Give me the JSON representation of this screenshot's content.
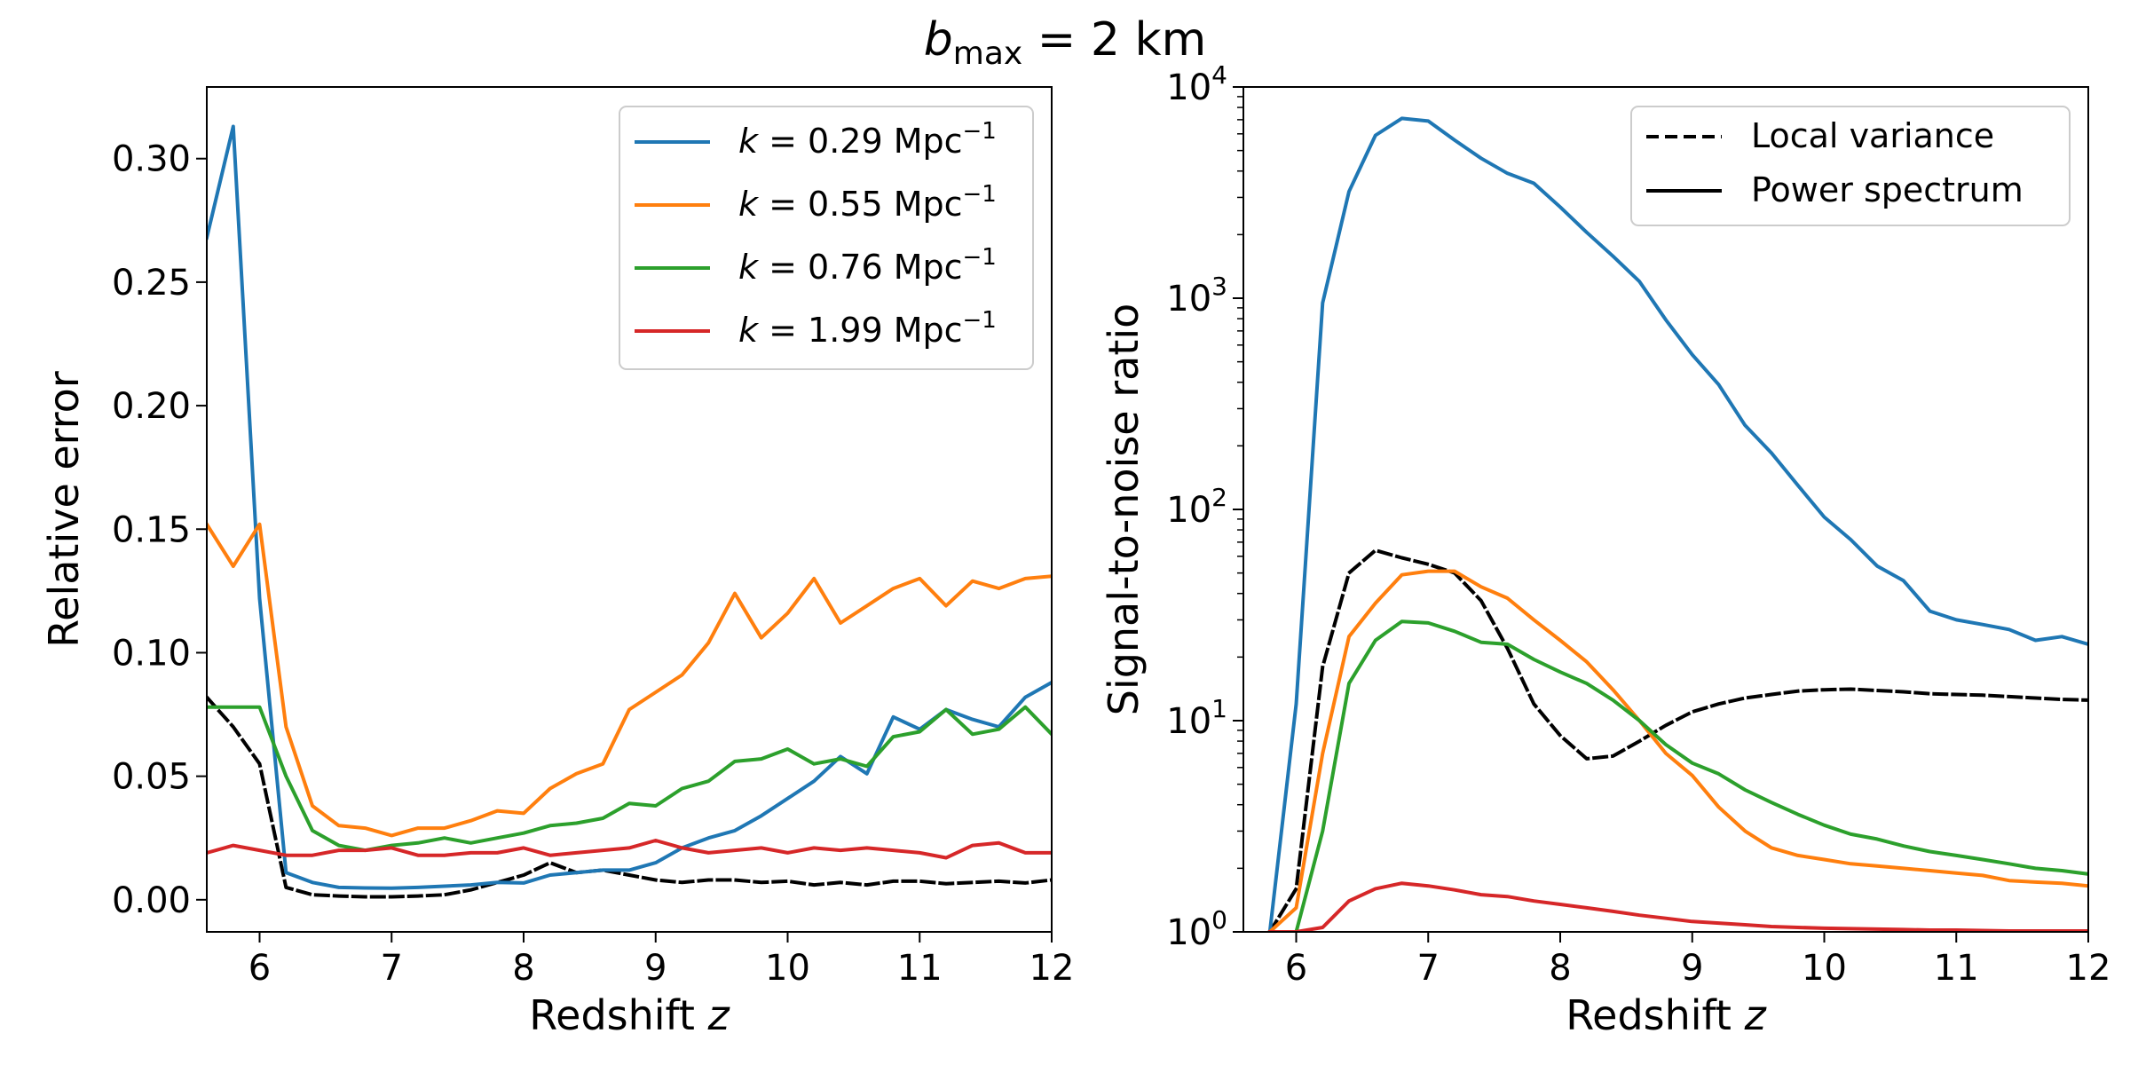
{
  "figure": {
    "title_var": "b",
    "title_sub": "max",
    "title_rest": " = 2 km"
  },
  "chart_data": [
    {
      "type": "line",
      "panel": "left",
      "xlabel": "Redshift",
      "xlabel_var": "z",
      "ylabel": "Relative error",
      "xlim": [
        5.6,
        12
      ],
      "ylim": [
        -0.013,
        0.329
      ],
      "yscale": "linear",
      "xticks": [
        6,
        7,
        8,
        9,
        10,
        11,
        12
      ],
      "yticks": [
        0.0,
        0.05,
        0.1,
        0.15,
        0.2,
        0.25,
        0.3
      ],
      "ytick_labels": [
        "0.00",
        "0.05",
        "0.10",
        "0.15",
        "0.20",
        "0.25",
        "0.30"
      ],
      "legend_location": "upper right",
      "x": [
        5.6,
        5.8,
        6.0,
        6.2,
        6.4,
        6.6,
        6.8,
        7.0,
        7.2,
        7.4,
        7.6,
        7.8,
        8.0,
        8.2,
        8.4,
        8.6,
        8.8,
        9.0,
        9.2,
        9.4,
        9.6,
        9.8,
        10.0,
        10.2,
        10.4,
        10.6,
        10.8,
        11.0,
        11.2,
        11.4,
        11.6,
        11.8,
        12.0
      ],
      "series": [
        {
          "name": "k = 0.29 Mpc⁻¹",
          "k": "0.29",
          "color": "#1f77b4",
          "dash": "solid",
          "values": [
            0.268,
            0.313,
            0.122,
            0.011,
            0.007,
            0.005,
            0.0048,
            0.0047,
            0.005,
            0.0055,
            0.006,
            0.007,
            0.0068,
            0.01,
            0.011,
            0.012,
            0.012,
            0.015,
            0.021,
            0.025,
            0.028,
            0.034,
            0.041,
            0.048,
            0.058,
            0.051,
            0.074,
            0.069,
            0.077,
            0.073,
            0.07,
            0.082,
            0.088
          ]
        },
        {
          "name": "k = 0.55 Mpc⁻¹",
          "k": "0.55",
          "color": "#ff7f0e",
          "dash": "solid",
          "values": [
            0.152,
            0.135,
            0.152,
            0.07,
            0.038,
            0.03,
            0.029,
            0.026,
            0.029,
            0.029,
            0.032,
            0.036,
            0.035,
            0.045,
            0.051,
            0.055,
            0.077,
            0.084,
            0.091,
            0.104,
            0.124,
            0.106,
            0.116,
            0.13,
            0.112,
            0.119,
            0.126,
            0.13,
            0.119,
            0.129,
            0.126,
            0.13,
            0.131
          ]
        },
        {
          "name": "k = 0.76 Mpc⁻¹",
          "k": "0.76",
          "color": "#2ca02c",
          "dash": "solid",
          "values": [
            0.078,
            0.078,
            0.078,
            0.05,
            0.028,
            0.022,
            0.02,
            0.022,
            0.023,
            0.025,
            0.023,
            0.025,
            0.027,
            0.03,
            0.031,
            0.033,
            0.039,
            0.038,
            0.045,
            0.048,
            0.056,
            0.057,
            0.061,
            0.055,
            0.057,
            0.054,
            0.066,
            0.068,
            0.077,
            0.067,
            0.069,
            0.078,
            0.067
          ]
        },
        {
          "name": "k = 1.99 Mpc⁻¹",
          "k": "1.99",
          "color": "#d62728",
          "dash": "solid",
          "values": [
            0.019,
            0.022,
            0.02,
            0.018,
            0.018,
            0.02,
            0.02,
            0.021,
            0.018,
            0.018,
            0.019,
            0.019,
            0.021,
            0.018,
            0.019,
            0.02,
            0.021,
            0.024,
            0.021,
            0.019,
            0.02,
            0.021,
            0.019,
            0.021,
            0.02,
            0.021,
            0.02,
            0.019,
            0.017,
            0.022,
            0.023,
            0.019,
            0.019
          ]
        },
        {
          "name": "Local variance",
          "color": "#000000",
          "dash": "dashed",
          "in_legend": false,
          "values": [
            0.082,
            0.07,
            0.055,
            0.005,
            0.002,
            0.0015,
            0.0012,
            0.0012,
            0.0015,
            0.002,
            0.004,
            0.007,
            0.01,
            0.015,
            0.011,
            0.012,
            0.01,
            0.008,
            0.007,
            0.008,
            0.008,
            0.007,
            0.0075,
            0.006,
            0.007,
            0.006,
            0.0075,
            0.0075,
            0.0065,
            0.007,
            0.0075,
            0.0068,
            0.008
          ]
        }
      ]
    },
    {
      "type": "line",
      "panel": "right",
      "xlabel": "Redshift",
      "xlabel_var": "z",
      "ylabel": "Signal-to-noise ratio",
      "xlim": [
        5.6,
        12
      ],
      "ylim": [
        1,
        10000
      ],
      "yscale": "log",
      "xticks": [
        6,
        7,
        8,
        9,
        10,
        11,
        12
      ],
      "yticks": [
        1,
        10,
        100,
        1000,
        10000
      ],
      "ytick_exponents": [
        "0",
        "1",
        "2",
        "3",
        "4"
      ],
      "legend_location": "upper right",
      "legend": [
        {
          "label": "Local variance",
          "dash": "dashed"
        },
        {
          "label": "Power spectrum",
          "dash": "solid"
        }
      ],
      "series": [
        {
          "name": "k = 0.29 Mpc⁻¹",
          "color": "#1f77b4",
          "dash": "solid",
          "x": [
            5.8,
            6.0,
            6.2,
            6.4,
            6.6,
            6.8,
            7.0,
            7.2,
            7.4,
            7.6,
            7.8,
            8.0,
            8.2,
            8.4,
            8.6,
            8.8,
            9.0,
            9.2,
            9.4,
            9.6,
            9.8,
            10.0,
            10.2,
            10.4,
            10.6,
            10.8,
            11.0,
            11.2,
            11.4,
            11.6,
            11.8,
            12.0
          ],
          "values": [
            1,
            12,
            950,
            3200,
            5900,
            7100,
            6900,
            5600,
            4600,
            3900,
            3500,
            2700,
            2050,
            1580,
            1200,
            790,
            540,
            390,
            250,
            185,
            130,
            92,
            72,
            54,
            46,
            33,
            30,
            28.5,
            27,
            24,
            25,
            23
          ]
        },
        {
          "name": "k = 0.55 Mpc⁻¹",
          "color": "#ff7f0e",
          "dash": "solid",
          "x": [
            5.8,
            6.0,
            6.2,
            6.4,
            6.6,
            6.8,
            7.0,
            7.2,
            7.4,
            7.6,
            7.8,
            8.0,
            8.2,
            8.4,
            8.6,
            8.8,
            9.0,
            9.2,
            9.4,
            9.6,
            9.8,
            10.0,
            10.2,
            10.4,
            10.6,
            10.8,
            11.0,
            11.2,
            11.4,
            11.6,
            11.8,
            12.0
          ],
          "values": [
            1,
            1.3,
            7,
            25,
            36,
            49,
            51,
            51,
            43,
            38,
            30,
            24,
            19,
            14,
            10,
            7,
            5.5,
            3.9,
            3.0,
            2.5,
            2.3,
            2.2,
            2.1,
            2.05,
            2.0,
            1.95,
            1.9,
            1.85,
            1.75,
            1.72,
            1.7,
            1.65
          ]
        },
        {
          "name": "k = 0.76 Mpc⁻¹",
          "color": "#2ca02c",
          "dash": "solid",
          "x": [
            5.8,
            6.0,
            6.2,
            6.4,
            6.6,
            6.8,
            7.0,
            7.2,
            7.4,
            7.6,
            7.8,
            8.0,
            8.2,
            8.4,
            8.6,
            8.8,
            9.0,
            9.2,
            9.4,
            9.6,
            9.8,
            10.0,
            10.2,
            10.4,
            10.6,
            10.8,
            11.0,
            11.2,
            11.4,
            11.6,
            11.8,
            12.0
          ],
          "values": [
            1,
            1,
            3,
            15,
            24,
            29.5,
            29,
            26.5,
            23.5,
            23,
            19.5,
            17,
            15,
            12.5,
            10,
            7.7,
            6.3,
            5.6,
            4.7,
            4.1,
            3.6,
            3.2,
            2.9,
            2.75,
            2.55,
            2.4,
            2.3,
            2.2,
            2.1,
            2.0,
            1.95,
            1.88
          ]
        },
        {
          "name": "k = 1.99 Mpc⁻¹",
          "color": "#d62728",
          "dash": "solid",
          "x": [
            5.8,
            6.0,
            6.2,
            6.4,
            6.6,
            6.8,
            7.0,
            7.2,
            7.4,
            7.6,
            7.8,
            8.0,
            8.2,
            8.4,
            8.6,
            8.8,
            9.0,
            9.2,
            9.4,
            9.6,
            9.8,
            10.0,
            10.2,
            10.4,
            10.6,
            10.8,
            11.0,
            11.2,
            11.4,
            11.6,
            11.8,
            12.0
          ],
          "values": [
            1,
            1,
            1.05,
            1.4,
            1.6,
            1.7,
            1.65,
            1.58,
            1.5,
            1.47,
            1.4,
            1.35,
            1.3,
            1.25,
            1.2,
            1.16,
            1.12,
            1.1,
            1.08,
            1.06,
            1.05,
            1.04,
            1.035,
            1.03,
            1.025,
            1.02,
            1.02,
            1.015,
            1.01,
            1.01,
            1.01,
            1.01
          ]
        },
        {
          "name": "Local variance",
          "color": "#000000",
          "dash": "dashed",
          "x": [
            5.8,
            6.0,
            6.2,
            6.4,
            6.6,
            6.8,
            7.0,
            7.2,
            7.4,
            7.6,
            7.8,
            8.0,
            8.2,
            8.4,
            8.6,
            8.8,
            9.0,
            9.2,
            9.4,
            9.6,
            9.8,
            10.0,
            10.2,
            10.4,
            10.6,
            10.8,
            11.0,
            11.2,
            11.4,
            11.6,
            11.8,
            12.0
          ],
          "values": [
            1,
            1.6,
            18,
            50,
            64,
            59,
            55,
            50,
            37,
            22,
            12,
            8.5,
            6.6,
            6.8,
            8,
            9.5,
            11,
            12,
            12.8,
            13.3,
            13.8,
            14,
            14.1,
            13.9,
            13.7,
            13.4,
            13.3,
            13.2,
            13,
            12.8,
            12.6,
            12.5
          ]
        }
      ]
    }
  ]
}
